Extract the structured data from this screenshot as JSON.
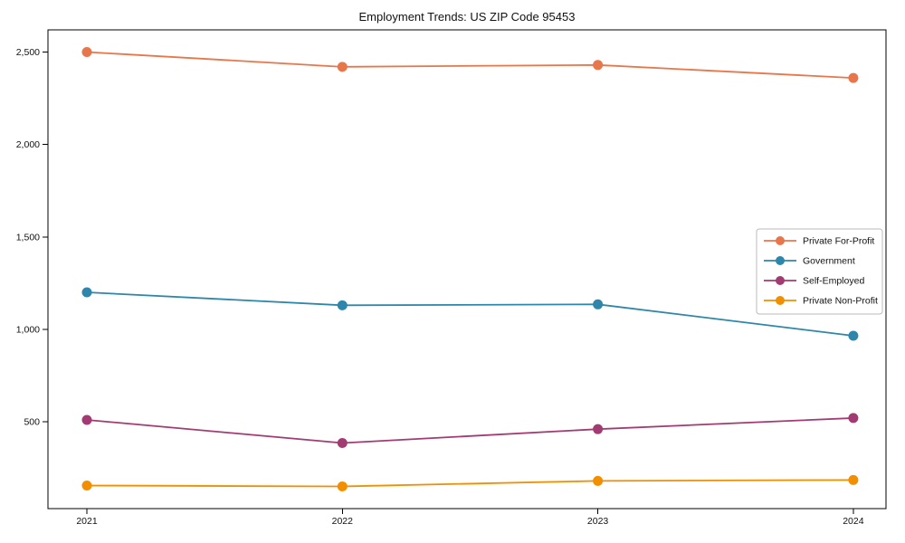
{
  "chart_data": {
    "type": "line",
    "title": "Employment Trends: US ZIP Code 95453",
    "x": [
      2021,
      2022,
      2023,
      2024
    ],
    "x_tick_labels": [
      "2021",
      "2022",
      "2023",
      "2024"
    ],
    "series": [
      {
        "name": "Private For-Profit",
        "color": "#E8764B",
        "values": [
          2500,
          2420,
          2430,
          2360
        ]
      },
      {
        "name": "Government",
        "color": "#2E86AB",
        "values": [
          1200,
          1130,
          1135,
          965
        ]
      },
      {
        "name": "Self-Employed",
        "color": "#A23B72",
        "values": [
          510,
          385,
          460,
          520
        ]
      },
      {
        "name": "Private Non-Profit",
        "color": "#F18F01",
        "values": [
          155,
          150,
          180,
          185
        ]
      }
    ],
    "yticks": [
      500,
      1000,
      1500,
      2000,
      2500
    ],
    "ytick_labels": [
      "500",
      "1,000",
      "1,500",
      "2,000",
      "2,500"
    ],
    "ylim": [
      30,
      2620
    ],
    "grid": false,
    "legend_position": "center-right",
    "marker": "circle",
    "spine_color": "#000000",
    "legend_border_color": "#bbbbbb",
    "background_color": "#ffffff"
  }
}
